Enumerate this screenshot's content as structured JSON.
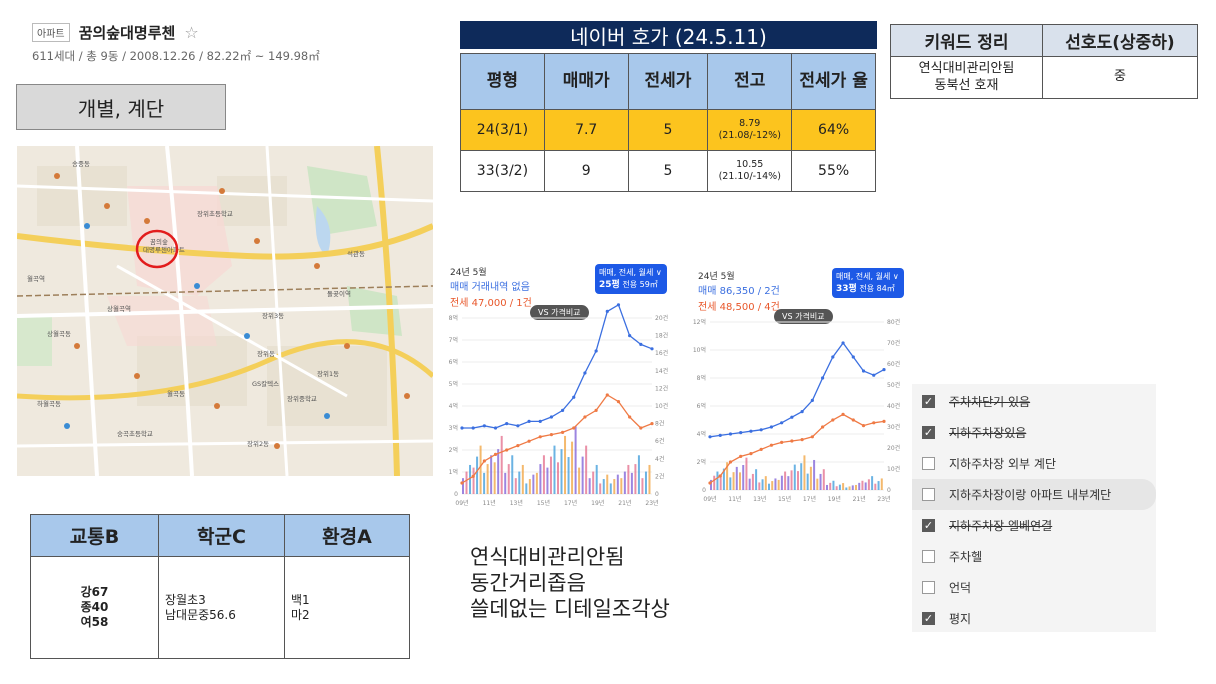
{
  "apt": {
    "badge": "아파트",
    "name": "꿈의숲대명루첸",
    "star": "☆",
    "meta": "611세대 / 총 9동 / 2008.12.26 / 82.22㎡ ~ 149.98㎡"
  },
  "type_label": "개별, 계단",
  "map": {
    "labels": [
      "꿈의숲",
      "대명루첸아파트",
      "송중동",
      "장위동",
      "월곡동",
      "장위3동",
      "장위1동",
      "장위2동",
      "하월곡동",
      "상월곡동",
      "석관동",
      "돌곶이역",
      "장위초등학교",
      "장위중학교",
      "숭곡초등학교",
      "GS칼텍스",
      "상월곡역",
      "월곡역"
    ]
  },
  "naver": {
    "title": "네이버 호가 (24.5.11)",
    "headers": [
      "평형",
      "매매가",
      "전세가",
      "전고",
      "전세가 율"
    ],
    "rows": [
      {
        "size": "24(3/1)",
        "sale": "7.7",
        "jeonse": "5",
        "peak_main": "8.79",
        "peak_sub": "(21.08/-12%)",
        "ratio": "64%",
        "highlight": true
      },
      {
        "size": "33(3/2)",
        "sale": "9",
        "jeonse": "5",
        "peak_main": "10.55",
        "peak_sub": "(21.10/-14%)",
        "ratio": "55%",
        "highlight": false
      }
    ]
  },
  "keywords": {
    "headers": [
      "키워드 정리",
      "선호도(상중하)"
    ],
    "line1": "연식대비관리안됨",
    "line2": "동북선 호재",
    "preference": "중"
  },
  "charts": [
    {
      "date": "24년 5월",
      "line1": "매매 거래내역 없음",
      "line2": "전세 47,000 / 1건",
      "toggle_top": "매매, 전세, 월세 ∨",
      "toggle_size": "25평",
      "toggle_area": "전용 59㎡",
      "vs": "VS 가격비교",
      "y_left": [
        "8억",
        "7억",
        "6억",
        "5억",
        "4억",
        "3억",
        "2억",
        "1억",
        "0"
      ],
      "y_right": [
        "20건",
        "18건",
        "16건",
        "14건",
        "12건",
        "10건",
        "8건",
        "6건",
        "4건",
        "2건",
        "0"
      ],
      "x_ticks": [
        "09년",
        "11년",
        "13년",
        "15년",
        "17년",
        "19년",
        "21년",
        "23년"
      ],
      "sale_series": [
        3.0,
        3.0,
        3.1,
        3.0,
        3.2,
        3.1,
        3.3,
        3.3,
        3.5,
        3.8,
        4.4,
        5.5,
        6.5,
        8.3,
        8.6,
        7.2,
        6.8,
        6.6
      ],
      "jeonse_series": [
        0.5,
        0.8,
        1.5,
        1.8,
        2.0,
        2.2,
        2.4,
        2.6,
        2.7,
        2.8,
        3.0,
        3.5,
        3.8,
        4.5,
        4.2,
        3.5,
        3.0,
        3.2
      ],
      "bar_counts": [
        3,
        5,
        4,
        6,
        4,
        3,
        2,
        4,
        5,
        6,
        7,
        5,
        3,
        2,
        2,
        3,
        4,
        3
      ]
    },
    {
      "date": "24년 5월",
      "line1": "매매 86,350 / 2건",
      "line2": "전세 48,500 / 4건",
      "toggle_top": "매매, 전세, 월세 ∨",
      "toggle_size": "33평",
      "toggle_area": "전용 84㎡",
      "vs": "VS 가격비교",
      "y_left": [
        "12억",
        "10억",
        "8억",
        "6억",
        "4억",
        "2억",
        "0"
      ],
      "y_right": [
        "80건",
        "70건",
        "60건",
        "50건",
        "40건",
        "30건",
        "20건",
        "10건",
        "0"
      ],
      "x_ticks": [
        "09년",
        "11년",
        "13년",
        "15년",
        "17년",
        "19년",
        "21년",
        "23년"
      ],
      "sale_series": [
        3.8,
        3.9,
        4.0,
        4.1,
        4.2,
        4.3,
        4.5,
        4.8,
        5.2,
        5.6,
        6.4,
        8.0,
        9.5,
        10.5,
        9.5,
        8.5,
        8.2,
        8.6
      ],
      "jeonse_series": [
        0.5,
        1.0,
        2.0,
        2.4,
        2.6,
        2.9,
        3.2,
        3.4,
        3.5,
        3.6,
        3.8,
        4.5,
        5.0,
        5.4,
        5.0,
        4.6,
        4.8,
        4.9
      ],
      "bar_counts": [
        8,
        12,
        10,
        14,
        9,
        6,
        5,
        8,
        11,
        15,
        13,
        9,
        4,
        3,
        2,
        4,
        6,
        5
      ]
    }
  ],
  "scores": {
    "headers": [
      "교통B",
      "학군C",
      "환경A"
    ],
    "transport": [
      "강67",
      "종40",
      "여58"
    ],
    "school": [
      "장월초3",
      "남대문중56.6"
    ],
    "env": [
      "백1",
      "마2"
    ]
  },
  "notes": [
    "연식대비관리안됨",
    "동간거리좁음",
    "쓸데없는 디테일조각상"
  ],
  "checklist": [
    {
      "label": "주차차단기 있음",
      "checked": true,
      "strike": true
    },
    {
      "label": "지하주차장있음",
      "checked": true,
      "strike": true
    },
    {
      "label": "지하주차장 외부 계단",
      "checked": false,
      "strike": false
    },
    {
      "label": "지하주차장이랑 아파트 내부계단",
      "checked": false,
      "strike": false,
      "hover": true
    },
    {
      "label": "지하주차장 엘베연결",
      "checked": true,
      "strike": true
    },
    {
      "label": "주차헬",
      "checked": false,
      "strike": false
    },
    {
      "label": "언덕",
      "checked": false,
      "strike": false
    },
    {
      "label": "평지",
      "checked": true,
      "strike": false
    }
  ]
}
